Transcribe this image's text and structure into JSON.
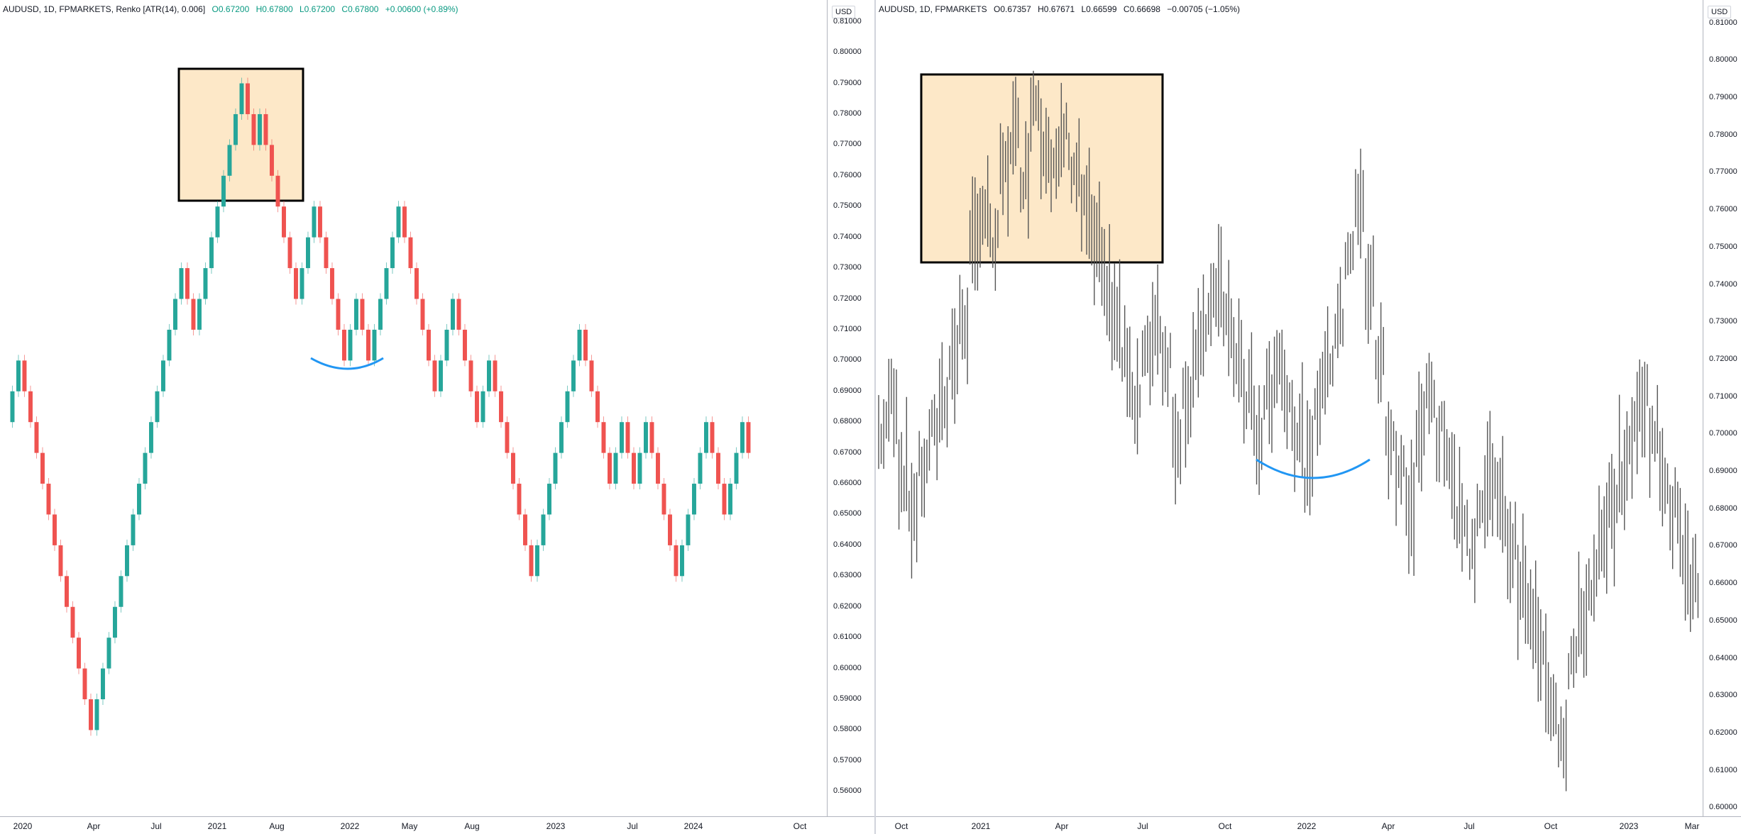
{
  "left_chart": {
    "symbol": "AUDUSD, 1D, FPMARKETS, Renko [ATR(14), 0.006]",
    "ohlc": {
      "open": "O0.67200",
      "high": "H0.67800",
      "low": "L0.67200",
      "close": "C0.67800",
      "change": "+0.00600 (+0.89%)"
    },
    "currency": "USD",
    "price_labels": [
      "0.81000",
      "0.80000",
      "0.79000",
      "0.78000",
      "0.77000",
      "0.76000",
      "0.75000",
      "0.74000",
      "0.73000",
      "0.72000",
      "0.71000",
      "0.70000",
      "0.69000",
      "0.68000",
      "0.67000",
      "0.66000",
      "0.65000",
      "0.64000",
      "0.63000",
      "0.62000",
      "0.61000",
      "0.60000",
      "0.59000",
      "0.58000",
      "0.57000",
      "0.56000"
    ],
    "time_labels": [
      "2020",
      "Apr",
      "Jul",
      "2021",
      "Aug",
      "2022",
      "May",
      "Aug",
      "2023",
      "Jul",
      "2024",
      "Oct"
    ],
    "colors": {
      "up": "#26a69a",
      "down": "#ef5350",
      "highlight_fill": "#fde8c8",
      "highlight_border": "#000000",
      "arc": "#2196f3"
    }
  },
  "right_chart": {
    "symbol": "AUDUSD, 1D, FPMARKETS",
    "ohlc": {
      "open": "O0.67357",
      "high": "H0.67671",
      "low": "L0.66599",
      "close": "C0.66698",
      "change": "−0.00705 (−1.05%)"
    },
    "currency": "USD",
    "price_labels": [
      "0.81000",
      "0.80000",
      "0.79000",
      "0.78000",
      "0.77000",
      "0.76000",
      "0.75000",
      "0.74000",
      "0.73000",
      "0.72000",
      "0.71000",
      "0.70000",
      "0.69000",
      "0.68000",
      "0.67000",
      "0.66000",
      "0.65000",
      "0.64000",
      "0.63000",
      "0.62000",
      "0.61000",
      "0.60000"
    ],
    "time_labels": [
      "Oct",
      "2021",
      "Apr",
      "Jul",
      "Oct",
      "2022",
      "Apr",
      "Jul",
      "Oct",
      "2023",
      "Mar"
    ],
    "colors": {
      "bars": "#555555",
      "highlight_fill": "#fde8c8",
      "highlight_border": "#000000",
      "arc": "#2196f3"
    }
  },
  "chart_data": [
    {
      "type": "renko",
      "series": [
        {
          "name": "AUDUSD Renko",
          "values": [
            0.68,
            0.69,
            0.7,
            0.69,
            0.68,
            0.67,
            0.66,
            0.65,
            0.64,
            0.63,
            0.62,
            0.61,
            0.6,
            0.59,
            0.58,
            0.59,
            0.6,
            0.61,
            0.62,
            0.63,
            0.64,
            0.65,
            0.66,
            0.67,
            0.68,
            0.69,
            0.7,
            0.71,
            0.72,
            0.73,
            0.72,
            0.71,
            0.72,
            0.73,
            0.74,
            0.75,
            0.76,
            0.77,
            0.78,
            0.79,
            0.78,
            0.77,
            0.78,
            0.77,
            0.76,
            0.75,
            0.74,
            0.73,
            0.72,
            0.73,
            0.74,
            0.75,
            0.74,
            0.73,
            0.72,
            0.71,
            0.7,
            0.71,
            0.72,
            0.71,
            0.7,
            0.71,
            0.72,
            0.73,
            0.74,
            0.75,
            0.74,
            0.73,
            0.72,
            0.71,
            0.7,
            0.69,
            0.7,
            0.71,
            0.72,
            0.71,
            0.7,
            0.69,
            0.68,
            0.69,
            0.7,
            0.69,
            0.68,
            0.67,
            0.66,
            0.65,
            0.64,
            0.63,
            0.64,
            0.65,
            0.66,
            0.67,
            0.68,
            0.69,
            0.7,
            0.71,
            0.7,
            0.69,
            0.68,
            0.67,
            0.66,
            0.67,
            0.68,
            0.67,
            0.66,
            0.67,
            0.68,
            0.67,
            0.66,
            0.65,
            0.64,
            0.63,
            0.64,
            0.65,
            0.66,
            0.67,
            0.68,
            0.67,
            0.66,
            0.65,
            0.66,
            0.67,
            0.68,
            0.67
          ]
        }
      ],
      "ylim": [
        0.555,
        0.812
      ]
    },
    {
      "type": "ohlc",
      "series": [
        {
          "name": "AUDUSD",
          "values": [
            0.7,
            0.71,
            0.69,
            0.68,
            0.69,
            0.7,
            0.71,
            0.72,
            0.73,
            0.75,
            0.76,
            0.75,
            0.77,
            0.78,
            0.77,
            0.79,
            0.78,
            0.77,
            0.78,
            0.77,
            0.76,
            0.75,
            0.74,
            0.73,
            0.72,
            0.71,
            0.72,
            0.73,
            0.72,
            0.7,
            0.71,
            0.72,
            0.73,
            0.74,
            0.73,
            0.72,
            0.71,
            0.7,
            0.71,
            0.72,
            0.71,
            0.7,
            0.69,
            0.71,
            0.72,
            0.73,
            0.75,
            0.76,
            0.74,
            0.72,
            0.7,
            0.69,
            0.68,
            0.7,
            0.71,
            0.7,
            0.69,
            0.68,
            0.67,
            0.68,
            0.69,
            0.68,
            0.67,
            0.66,
            0.65,
            0.64,
            0.63,
            0.62,
            0.64,
            0.65,
            0.66,
            0.67,
            0.68,
            0.69,
            0.7,
            0.71,
            0.7,
            0.69,
            0.68,
            0.67,
            0.66
          ]
        }
      ],
      "ylim": [
        0.598,
        0.812
      ]
    }
  ]
}
